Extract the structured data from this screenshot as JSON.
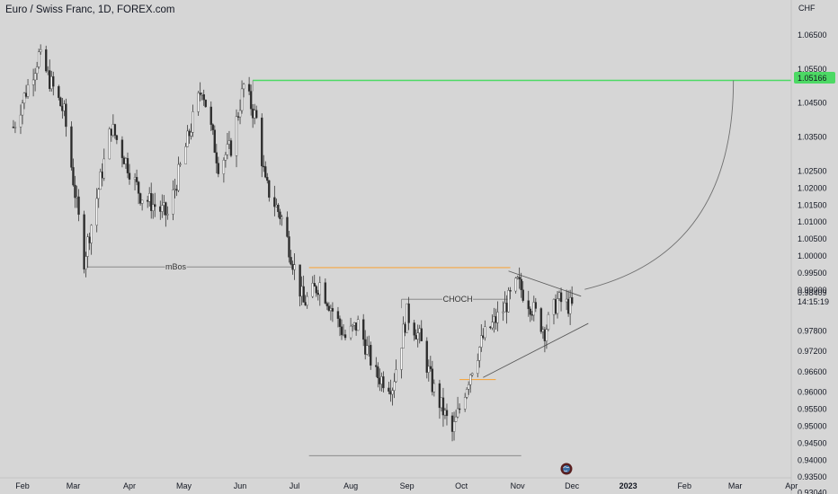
{
  "header": {
    "title": "Euro / Swiss Franc, 1D, FOREX.com"
  },
  "axis": {
    "currency": "CHF"
  },
  "price": {
    "current": "0.98409",
    "countdown": "14:15:19"
  },
  "target": {
    "value": "1.05166"
  },
  "annotations": {
    "mbos": "mBos",
    "choch": "CHOCH"
  },
  "icons": {
    "marker": "globe-icon"
  },
  "colors": {
    "background": "#d6d6d6",
    "candle": "#ffffff",
    "wick": "#3a3a3a",
    "target_line": "#4cd964",
    "orange_line": "#f5a742",
    "gray_line": "#808080"
  },
  "chart_data": {
    "type": "candlestick",
    "title": "Euro / Swiss Franc, 1D, FOREX.com",
    "y_unit": "CHF",
    "ylim": [
      0.9304,
      1.0716
    ],
    "y_ticks": [
      "1.06500",
      "1.05500",
      "1.04500",
      "1.03500",
      "1.02500",
      "1.02000",
      "1.01500",
      "1.01000",
      "1.00500",
      "1.00000",
      "0.99500",
      "0.99000",
      "0.97800",
      "0.97200",
      "0.96600",
      "0.96000",
      "0.95500",
      "0.95000",
      "0.94500",
      "0.94000",
      "0.93500",
      "0.93040"
    ],
    "x_ticks": [
      "Feb",
      "Mar",
      "Apr",
      "May",
      "Jun",
      "Jul",
      "Aug",
      "Sep",
      "Oct",
      "Nov",
      "Dec",
      "2023",
      "Feb",
      "Mar",
      "Apr"
    ],
    "anchors": [
      {
        "date": "2022-01-27",
        "price": 1.038
      },
      {
        "date": "2022-02-10",
        "price": 1.059
      },
      {
        "date": "2022-02-24",
        "price": 1.042
      },
      {
        "date": "2022-03-07",
        "price": 0.999
      },
      {
        "date": "2022-03-22",
        "price": 1.038
      },
      {
        "date": "2022-04-07",
        "price": 1.018
      },
      {
        "date": "2022-04-22",
        "price": 1.012
      },
      {
        "date": "2022-05-02",
        "price": 1.032
      },
      {
        "date": "2022-05-11",
        "price": 1.05
      },
      {
        "date": "2022-05-20",
        "price": 1.027
      },
      {
        "date": "2022-05-27",
        "price": 1.032
      },
      {
        "date": "2022-06-03",
        "price": 1.05
      },
      {
        "date": "2022-06-10",
        "price": 1.04
      },
      {
        "date": "2022-06-15",
        "price": 1.021
      },
      {
        "date": "2022-06-24",
        "price": 1.011
      },
      {
        "date": "2022-07-06",
        "price": 0.986
      },
      {
        "date": "2022-07-15",
        "price": 0.992
      },
      {
        "date": "2022-07-29",
        "price": 0.976
      },
      {
        "date": "2022-08-05",
        "price": 0.98
      },
      {
        "date": "2022-08-15",
        "price": 0.965
      },
      {
        "date": "2022-08-24",
        "price": 0.962
      },
      {
        "date": "2022-09-01",
        "price": 0.983
      },
      {
        "date": "2022-09-08",
        "price": 0.976
      },
      {
        "date": "2022-09-15",
        "price": 0.962
      },
      {
        "date": "2022-09-26",
        "price": 0.948
      },
      {
        "date": "2022-10-06",
        "price": 0.966
      },
      {
        "date": "2022-10-13",
        "price": 0.976
      },
      {
        "date": "2022-10-25",
        "price": 0.985
      },
      {
        "date": "2022-11-01",
        "price": 0.992
      },
      {
        "date": "2022-11-10",
        "price": 0.984
      },
      {
        "date": "2022-11-16",
        "price": 0.978
      },
      {
        "date": "2022-11-23",
        "price": 0.987
      },
      {
        "date": "2022-12-01",
        "price": 0.985
      }
    ],
    "levels": {
      "target": 1.05166,
      "mbos": 0.9968,
      "orange_high": 0.9966,
      "choch": 0.9873,
      "orange_low": 0.9637,
      "bottom": 0.9413
    },
    "triangle": {
      "upper": [
        {
          "date": "2022-10-27",
          "price": 0.9956
        },
        {
          "date": "2022-12-06",
          "price": 0.9882
        }
      ],
      "lower": [
        {
          "date": "2022-10-13",
          "price": 0.9643
        },
        {
          "date": "2022-12-10",
          "price": 0.9802
        }
      ]
    },
    "projection": {
      "from": {
        "date": "2022-12-08",
        "price": 0.9902
      },
      "to": {
        "date": "2023-02-28",
        "price": 1.05166
      }
    },
    "grid": false,
    "legend": "none"
  }
}
